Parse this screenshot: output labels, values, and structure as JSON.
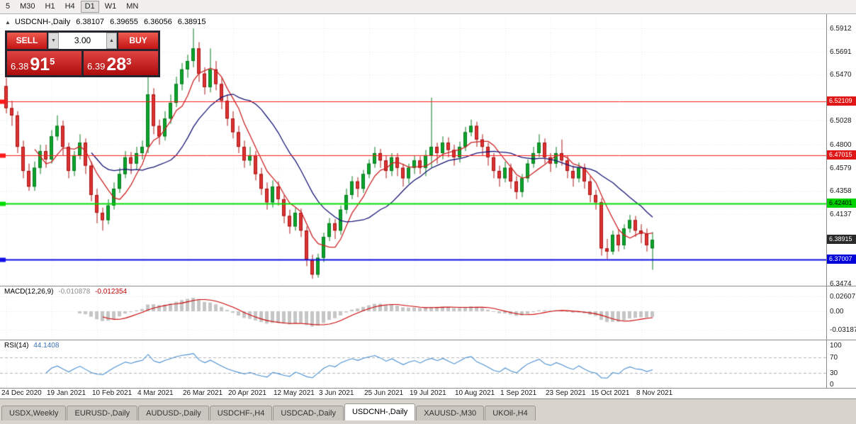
{
  "toolbar": {
    "timeframes": [
      {
        "label": "5"
      },
      {
        "label": "M30"
      },
      {
        "label": "H1"
      },
      {
        "label": "H4"
      },
      {
        "label": "D1",
        "active": true
      },
      {
        "label": "W1"
      },
      {
        "label": "MN"
      }
    ]
  },
  "title": {
    "icon": "▲",
    "symbol": "USDCNH-,Daily",
    "open": "6.38107",
    "high": "6.39655",
    "low": "6.36056",
    "close": "6.38915"
  },
  "trade_panel": {
    "sell_label": "SELL",
    "buy_label": "BUY",
    "volume": "3.00",
    "spin_down": "▼",
    "spin_up": "▲",
    "sell_price": {
      "prefix": "6.38",
      "big": "91",
      "sup": "5"
    },
    "buy_price": {
      "prefix": "6.39",
      "big": "28",
      "sup": "3"
    }
  },
  "chart_data": {
    "type": "candlestick",
    "title": "USDCNH-,Daily",
    "xlabel": "",
    "ylabel": "",
    "price_range_visible": [
      6.346,
      6.602
    ],
    "candles": [
      [
        6.536,
        6.544,
        6.51,
        6.515
      ],
      [
        6.515,
        6.522,
        6.498,
        6.508
      ],
      [
        6.508,
        6.512,
        6.472,
        6.478
      ],
      [
        6.478,
        6.484,
        6.448,
        6.455
      ],
      [
        6.455,
        6.462,
        6.436,
        6.44
      ],
      [
        6.44,
        6.464,
        6.436,
        6.458
      ],
      [
        6.458,
        6.48,
        6.452,
        6.474
      ],
      [
        6.474,
        6.48,
        6.458,
        6.466
      ],
      [
        6.466,
        6.494,
        6.462,
        6.488
      ],
      [
        6.488,
        6.508,
        6.484,
        6.498
      ],
      [
        6.498,
        6.503,
        6.47,
        6.478
      ],
      [
        6.478,
        6.482,
        6.448,
        6.455
      ],
      [
        6.455,
        6.474,
        6.45,
        6.47
      ],
      [
        6.47,
        6.49,
        6.466,
        6.482
      ],
      [
        6.482,
        6.486,
        6.452,
        6.46
      ],
      [
        6.46,
        6.464,
        6.426,
        6.432
      ],
      [
        6.432,
        6.438,
        6.405,
        6.415
      ],
      [
        6.415,
        6.42,
        6.398,
        6.408
      ],
      [
        6.408,
        6.428,
        6.404,
        6.422
      ],
      [
        6.422,
        6.444,
        6.418,
        6.438
      ],
      [
        6.438,
        6.458,
        6.434,
        6.452
      ],
      [
        6.452,
        6.474,
        6.448,
        6.468
      ],
      [
        6.468,
        6.473,
        6.452,
        6.462
      ],
      [
        6.462,
        6.478,
        6.456,
        6.472
      ],
      [
        6.472,
        6.484,
        6.466,
        6.478
      ],
      [
        6.478,
        6.566,
        6.472,
        6.528
      ],
      [
        6.528,
        6.534,
        6.49,
        6.498
      ],
      [
        6.498,
        6.504,
        6.48,
        6.488
      ],
      [
        6.488,
        6.512,
        6.484,
        6.505
      ],
      [
        6.505,
        6.528,
        6.5,
        6.52
      ],
      [
        6.52,
        6.545,
        6.516,
        6.538
      ],
      [
        6.538,
        6.558,
        6.532,
        6.552
      ],
      [
        6.552,
        6.566,
        6.544,
        6.56
      ],
      [
        6.56,
        6.591,
        6.554,
        6.572
      ],
      [
        6.572,
        6.578,
        6.54,
        6.548
      ],
      [
        6.548,
        6.554,
        6.528,
        6.535
      ],
      [
        6.535,
        6.572,
        6.53,
        6.552
      ],
      [
        6.552,
        6.56,
        6.532,
        6.538
      ],
      [
        6.538,
        6.544,
        6.514,
        6.522
      ],
      [
        6.522,
        6.528,
        6.498,
        6.505
      ],
      [
        6.505,
        6.512,
        6.486,
        6.492
      ],
      [
        6.492,
        6.498,
        6.472,
        6.478
      ],
      [
        6.478,
        6.484,
        6.458,
        6.465
      ],
      [
        6.465,
        6.478,
        6.46,
        6.47
      ],
      [
        6.47,
        6.474,
        6.446,
        6.452
      ],
      [
        6.452,
        6.458,
        6.432,
        6.438
      ],
      [
        6.438,
        6.444,
        6.418,
        6.425
      ],
      [
        6.425,
        6.446,
        6.42,
        6.44
      ],
      [
        6.44,
        6.445,
        6.422,
        6.428
      ],
      [
        6.428,
        6.432,
        6.405,
        6.412
      ],
      [
        6.412,
        6.418,
        6.395,
        6.402
      ],
      [
        6.402,
        6.42,
        6.398,
        6.415
      ],
      [
        6.415,
        6.419,
        6.392,
        6.398
      ],
      [
        6.398,
        6.402,
        6.364,
        6.37
      ],
      [
        6.37,
        6.375,
        6.352,
        6.356
      ],
      [
        6.356,
        6.376,
        6.353,
        6.372
      ],
      [
        6.372,
        6.396,
        6.368,
        6.392
      ],
      [
        6.392,
        6.41,
        6.388,
        6.405
      ],
      [
        6.405,
        6.409,
        6.39,
        6.398
      ],
      [
        6.398,
        6.422,
        6.394,
        6.418
      ],
      [
        6.418,
        6.438,
        6.414,
        6.432
      ],
      [
        6.432,
        6.45,
        6.428,
        6.445
      ],
      [
        6.445,
        6.449,
        6.43,
        6.438
      ],
      [
        6.438,
        6.456,
        6.434,
        6.452
      ],
      [
        6.452,
        6.466,
        6.448,
        6.462
      ],
      [
        6.462,
        6.478,
        6.458,
        6.472
      ],
      [
        6.472,
        6.476,
        6.458,
        6.465
      ],
      [
        6.465,
        6.47,
        6.448,
        6.455
      ],
      [
        6.455,
        6.472,
        6.45,
        6.468
      ],
      [
        6.468,
        6.472,
        6.45,
        6.458
      ],
      [
        6.458,
        6.462,
        6.44,
        6.448
      ],
      [
        6.448,
        6.462,
        6.443,
        6.458
      ],
      [
        6.458,
        6.47,
        6.452,
        6.465
      ],
      [
        6.465,
        6.469,
        6.452,
        6.458
      ],
      [
        6.458,
        6.475,
        6.45,
        6.47
      ],
      [
        6.47,
        6.525,
        6.458,
        6.478
      ],
      [
        6.478,
        6.482,
        6.462,
        6.472
      ],
      [
        6.472,
        6.488,
        6.466,
        6.482
      ],
      [
        6.482,
        6.487,
        6.468,
        6.475
      ],
      [
        6.475,
        6.48,
        6.46,
        6.468
      ],
      [
        6.468,
        6.483,
        6.463,
        6.478
      ],
      [
        6.478,
        6.497,
        6.474,
        6.492
      ],
      [
        6.492,
        6.504,
        6.488,
        6.498
      ],
      [
        6.498,
        6.502,
        6.478,
        6.485
      ],
      [
        6.485,
        6.49,
        6.47,
        6.478
      ],
      [
        6.478,
        6.482,
        6.46,
        6.468
      ],
      [
        6.468,
        6.472,
        6.448,
        6.455
      ],
      [
        6.455,
        6.46,
        6.44,
        6.448
      ],
      [
        6.448,
        6.464,
        6.444,
        6.458
      ],
      [
        6.458,
        6.462,
        6.438,
        6.445
      ],
      [
        6.445,
        6.45,
        6.428,
        6.435
      ],
      [
        6.435,
        6.452,
        6.43,
        6.448
      ],
      [
        6.448,
        6.466,
        6.444,
        6.462
      ],
      [
        6.462,
        6.478,
        6.458,
        6.472
      ],
      [
        6.472,
        6.49,
        6.468,
        6.482
      ],
      [
        6.482,
        6.486,
        6.462,
        6.468
      ],
      [
        6.468,
        6.472,
        6.454,
        6.462
      ],
      [
        6.462,
        6.478,
        6.458,
        6.472
      ],
      [
        6.472,
        6.485,
        6.46,
        6.465
      ],
      [
        6.465,
        6.47,
        6.448,
        6.455
      ],
      [
        6.455,
        6.46,
        6.44,
        6.448
      ],
      [
        6.448,
        6.463,
        6.444,
        6.458
      ],
      [
        6.458,
        6.462,
        6.438,
        6.445
      ],
      [
        6.445,
        6.45,
        6.425,
        6.432
      ],
      [
        6.432,
        6.437,
        6.418,
        6.425
      ],
      [
        6.425,
        6.429,
        6.374,
        6.381
      ],
      [
        6.381,
        6.39,
        6.371,
        6.378
      ],
      [
        6.378,
        6.398,
        6.375,
        6.394
      ],
      [
        6.394,
        6.399,
        6.378,
        6.384
      ],
      [
        6.384,
        6.404,
        6.38,
        6.4
      ],
      [
        6.4,
        6.413,
        6.396,
        6.408
      ],
      [
        6.408,
        6.412,
        6.392,
        6.398
      ],
      [
        6.398,
        6.404,
        6.386,
        6.395
      ],
      [
        6.395,
        6.4,
        6.378,
        6.384
      ],
      [
        6.38107,
        6.39655,
        6.36056,
        6.38915
      ]
    ],
    "x_labels": [
      {
        "index": 0,
        "label": "24 Dec 2020"
      },
      {
        "index": 8,
        "label": "19 Jan 2021"
      },
      {
        "index": 16,
        "label": "10 Feb 2021"
      },
      {
        "index": 24,
        "label": "4 Mar 2021"
      },
      {
        "index": 32,
        "label": "26 Mar 2021"
      },
      {
        "index": 40,
        "label": "20 Apr 2021"
      },
      {
        "index": 48,
        "label": "12 May 2021"
      },
      {
        "index": 56,
        "label": "3 Jun 2021"
      },
      {
        "index": 64,
        "label": "25 Jun 2021"
      },
      {
        "index": 72,
        "label": "19 Jul 2021"
      },
      {
        "index": 80,
        "label": "10 Aug 2021"
      },
      {
        "index": 88,
        "label": "1 Sep 2021"
      },
      {
        "index": 96,
        "label": "23 Sep 2021"
      },
      {
        "index": 104,
        "label": "15 Oct 2021"
      },
      {
        "index": 112,
        "label": "8 Nov 2021"
      }
    ],
    "y_axis": {
      "ticks": [
        {
          "label": "6.5912",
          "value": 6.5912
        },
        {
          "label": "6.5691",
          "value": 6.5691
        },
        {
          "label": "6.5470",
          "value": 6.547
        },
        {
          "label": "6.5028",
          "value": 6.5028
        },
        {
          "label": "6.4800",
          "value": 6.48
        },
        {
          "label": "6.4579",
          "value": 6.4579
        },
        {
          "label": "6.4358",
          "value": 6.4358
        },
        {
          "label": "6.4137",
          "value": 6.4137
        },
        {
          "label": "6.3474",
          "value": 6.3474
        }
      ],
      "badges": [
        {
          "label": "6.52109",
          "value": 6.52109,
          "bg": "#e01616",
          "fg": "#ffffff"
        },
        {
          "label": "6.47015",
          "value": 6.47015,
          "bg": "#e01616",
          "fg": "#ffffff"
        },
        {
          "label": "6.42401",
          "value": 6.42401,
          "bg": "#00d200",
          "fg": "#000000"
        },
        {
          "label": "6.38915",
          "value": 6.38915,
          "bg": "#2a2a2a",
          "fg": "#ffffff"
        },
        {
          "label": "6.37007",
          "value": 6.37007,
          "bg": "#0000d8",
          "fg": "#ffffff"
        }
      ]
    },
    "hlines": [
      {
        "value": 6.52109,
        "color": "#ff1a1a",
        "width": 1
      },
      {
        "value": 6.47015,
        "color": "#ff1a1a",
        "width": 1
      },
      {
        "value": 6.42401,
        "color": "#00dd00",
        "width": 2
      },
      {
        "value": 6.37007,
        "color": "#0f0fe6",
        "width": 2
      }
    ],
    "indicators": {
      "ma_fast": {
        "period": 6,
        "color": "#cc2222"
      },
      "ma_slow": {
        "period": 16,
        "color": "#151575"
      },
      "macd": {
        "name": "MACD(12,26,9)",
        "value1": "-0.010878",
        "value2": "-0.012354",
        "hist_color": "#c6c6c6",
        "signal_color": "#cc0000",
        "axis": [
          {
            "label": "0.02607",
            "value": 0.02607
          },
          {
            "label": "0.00",
            "value": 0
          },
          {
            "label": "-0.03187",
            "value": -0.03187
          }
        ]
      },
      "rsi": {
        "name": "RSI(14)",
        "value": "44.1408",
        "color": "#4a90d2",
        "levels": [
          70,
          30
        ],
        "axis": [
          {
            "label": "100",
            "value": 100
          },
          {
            "label": "70",
            "value": 70
          },
          {
            "label": "30",
            "value": 30
          },
          {
            "label": "0",
            "value": 0
          }
        ]
      }
    },
    "colors": {
      "up": "#0da32b",
      "up_stroke": "#077a1f",
      "down": "#dd3333",
      "down_stroke": "#a81414"
    }
  },
  "tabs": {
    "items": [
      {
        "label": "USDX,Weekly"
      },
      {
        "label": "EURUSD-,Daily"
      },
      {
        "label": "AUDUSD-,Daily"
      },
      {
        "label": "USDCHF-,H4"
      },
      {
        "label": "USDCAD-,Daily"
      },
      {
        "label": "USDCNH-,Daily",
        "active": true
      },
      {
        "label": "XAUUSD-,M30"
      },
      {
        "label": "UKOil-,H4"
      }
    ]
  }
}
